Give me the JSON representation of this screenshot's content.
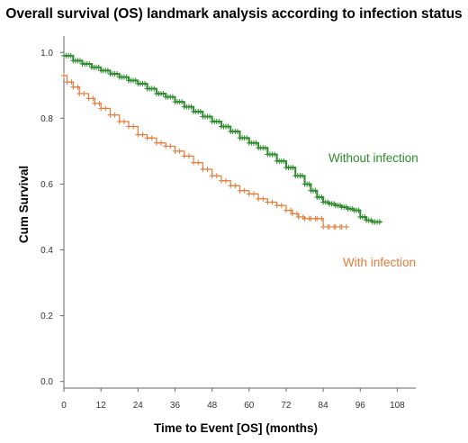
{
  "chart_data": {
    "type": "line",
    "title": "Overall survival (OS) landmark analysis according to infection status",
    "xlabel": "Time to Event [OS] (months)",
    "ylabel": "Cum Survival",
    "xlim": [
      0,
      114
    ],
    "ylim": [
      -0.02,
      1.05
    ],
    "x_ticks": [
      "0",
      "12",
      "24",
      "36",
      "48",
      "60",
      "72",
      "84",
      "96",
      "108"
    ],
    "y_ticks": [
      "0.0",
      "0.2",
      "0.4",
      "0.6",
      "0.8",
      "1.0"
    ],
    "grid": false,
    "legend": "inline labels",
    "series": [
      {
        "name": "Without infection",
        "color": "#2e8b2e",
        "x": [
          0,
          3,
          6,
          9,
          12,
          15,
          18,
          21,
          24,
          27,
          30,
          33,
          36,
          39,
          42,
          45,
          48,
          51,
          54,
          57,
          60,
          63,
          66,
          69,
          72,
          75,
          78,
          80,
          82,
          84,
          86,
          88,
          90,
          92,
          94,
          96,
          98,
          100,
          103
        ],
        "y": [
          0.99,
          0.975,
          0.965,
          0.955,
          0.945,
          0.935,
          0.925,
          0.915,
          0.905,
          0.89,
          0.875,
          0.865,
          0.85,
          0.835,
          0.82,
          0.805,
          0.79,
          0.775,
          0.76,
          0.74,
          0.725,
          0.71,
          0.69,
          0.67,
          0.65,
          0.625,
          0.6,
          0.58,
          0.56,
          0.545,
          0.54,
          0.535,
          0.53,
          0.525,
          0.52,
          0.5,
          0.49,
          0.485,
          0.485
        ]
      },
      {
        "name": "With infection",
        "color": "#e07b39",
        "x": [
          0,
          1,
          3,
          5,
          8,
          10,
          12,
          15,
          18,
          21,
          24,
          27,
          30,
          33,
          36,
          39,
          42,
          45,
          48,
          51,
          54,
          57,
          60,
          63,
          66,
          69,
          72,
          74,
          76,
          78,
          80,
          82,
          84,
          86,
          88,
          90,
          92
        ],
        "y": [
          0.93,
          0.91,
          0.895,
          0.875,
          0.86,
          0.845,
          0.83,
          0.81,
          0.79,
          0.775,
          0.75,
          0.74,
          0.725,
          0.715,
          0.7,
          0.685,
          0.665,
          0.645,
          0.625,
          0.61,
          0.595,
          0.58,
          0.57,
          0.555,
          0.545,
          0.535,
          0.52,
          0.51,
          0.5,
          0.495,
          0.495,
          0.495,
          0.47,
          0.47,
          0.47,
          0.47,
          0.47
        ]
      }
    ]
  }
}
